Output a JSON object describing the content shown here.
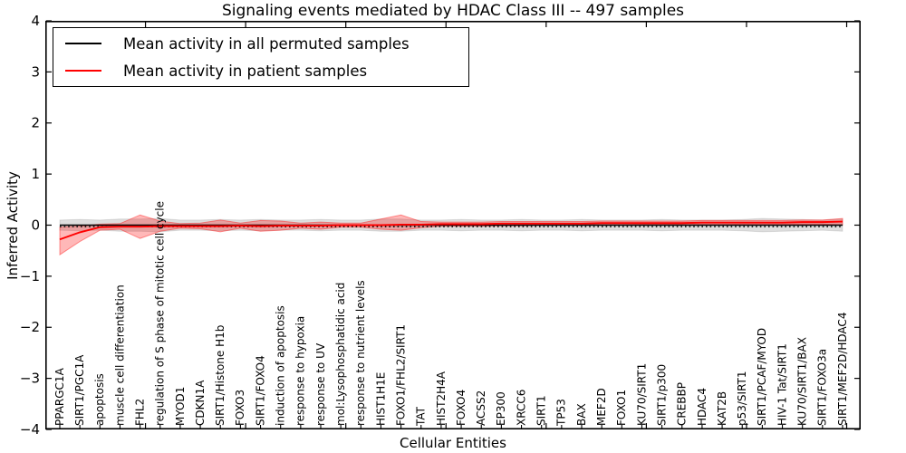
{
  "chart_data": {
    "type": "line",
    "title": "Signaling events mediated by HDAC Class III -- 497 samples",
    "xlabel": "Cellular Entities",
    "ylabel": "Inferred Activity",
    "ylim": [
      -4,
      4
    ],
    "xlim": [
      0,
      40.7
    ],
    "grid": false,
    "legend_position": "upper left",
    "y_tick_values": [
      4,
      3,
      2,
      1,
      0,
      -1,
      -2,
      -3,
      -4
    ],
    "y_tick_labels": [
      "4",
      "3",
      "2",
      "1",
      "0",
      "−1",
      "−2",
      "−3",
      "−4"
    ],
    "x_major_tick_values": [
      5,
      10,
      15,
      20,
      25,
      30,
      35,
      40
    ],
    "categories": [
      "PPARGC1A",
      "SIRT1/PGC1A",
      "apoptosis",
      "muscle cell differentiation",
      "FHL2",
      "regulation of S phase of mitotic cell cycle",
      "MYOD1",
      "CDKN1A",
      "SIRT1/Histone H1b",
      "FOXO3",
      "SIRT1/FOXO4",
      "induction of apoptosis",
      "response to hypoxia",
      "response to UV",
      "mol:Lysophosphatidic acid",
      "response to nutrient levels",
      "HIST1H1E",
      "FOXO1/FHL2/SIRT1",
      "TAT",
      "HIST2H4A",
      "FOXO4",
      "ACSS2",
      "EP300",
      "XRCC6",
      "SIRT1",
      "TP53",
      "BAX",
      "MEF2D",
      "FOXO1",
      "KU70/SIRT1",
      "SIRT1/p300",
      "CREBBP",
      "HDAC4",
      "KAT2B",
      "p53/SIRT1",
      "SIRT1/PCAF/MYOD",
      "HIV-1 Tat/SIRT1",
      "KU70/SIRT1/BAX",
      "SIRT1/FOXO3a",
      "SIRT1/MEF2D/HDAC4"
    ],
    "series": [
      {
        "name": "Mean activity in all permuted samples",
        "color": "#000000",
        "values": [
          0,
          0,
          0,
          0,
          0,
          0,
          0,
          0,
          0,
          0,
          0,
          0,
          0,
          0,
          0,
          0,
          0,
          0,
          0,
          0,
          0,
          0,
          0,
          0,
          0,
          0,
          0,
          0,
          0,
          0,
          0,
          0,
          0,
          0,
          0,
          0,
          0,
          0,
          0,
          0
        ]
      },
      {
        "name": "Mean activity in patient samples",
        "color": "#ff0000",
        "values": [
          -0.28,
          -0.14,
          -0.04,
          -0.03,
          -0.03,
          -0.02,
          -0.02,
          -0.02,
          -0.02,
          -0.01,
          -0.02,
          -0.01,
          -0.01,
          -0.01,
          0,
          0,
          0,
          0.01,
          0.01,
          0.02,
          0.02,
          0.02,
          0.03,
          0.03,
          0.03,
          0.03,
          0.03,
          0.04,
          0.04,
          0.04,
          0.04,
          0.04,
          0.05,
          0.05,
          0.05,
          0.05,
          0.05,
          0.06,
          0.06,
          0.07
        ]
      }
    ],
    "bands": [
      {
        "name": "permuted samples std band",
        "fill": "rgba(0,0,0,0.13)",
        "edge": "rgba(0,0,0,0.10)",
        "upper": [
          0.1,
          0.11,
          0.1,
          0.12,
          0.12,
          0.13,
          0.1,
          0.1,
          0.11,
          0.1,
          0.11,
          0.1,
          0.1,
          0.11,
          0.1,
          0.1,
          0.12,
          0.12,
          0.1,
          0.1,
          0.11,
          0.1,
          0.1,
          0.11,
          0.1,
          0.1,
          0.11,
          0.1,
          0.1,
          0.1,
          0.11,
          0.1,
          0.1,
          0.1,
          0.11,
          0.13,
          0.12,
          0.11,
          0.1,
          0.12
        ],
        "lower": [
          -0.1,
          -0.11,
          -0.1,
          -0.12,
          -0.12,
          -0.13,
          -0.1,
          -0.1,
          -0.11,
          -0.1,
          -0.11,
          -0.1,
          -0.1,
          -0.11,
          -0.1,
          -0.1,
          -0.12,
          -0.12,
          -0.1,
          -0.1,
          -0.11,
          -0.1,
          -0.1,
          -0.11,
          -0.1,
          -0.1,
          -0.11,
          -0.1,
          -0.1,
          -0.1,
          -0.11,
          -0.1,
          -0.1,
          -0.1,
          -0.11,
          -0.13,
          -0.12,
          -0.11,
          -0.1,
          -0.12
        ]
      },
      {
        "name": "patient samples std band",
        "fill": "rgba(255,0,0,0.28)",
        "edge": "rgba(255,0,0,0.40)",
        "upper": [
          -0.04,
          -0.02,
          0.02,
          0.03,
          0.2,
          0.08,
          0.03,
          0.04,
          0.1,
          0.04,
          0.09,
          0.08,
          0.04,
          0.06,
          0.04,
          0.04,
          0.12,
          0.2,
          0.07,
          0.06,
          0.06,
          0.06,
          0.07,
          0.07,
          0.07,
          0.07,
          0.07,
          0.08,
          0.08,
          0.08,
          0.08,
          0.08,
          0.09,
          0.09,
          0.09,
          0.09,
          0.09,
          0.1,
          0.1,
          0.13
        ],
        "lower": [
          -0.58,
          -0.32,
          -0.1,
          -0.08,
          -0.26,
          -0.12,
          -0.06,
          -0.07,
          -0.13,
          -0.06,
          -0.12,
          -0.1,
          -0.06,
          -0.08,
          -0.04,
          -0.04,
          -0.08,
          -0.1,
          -0.05,
          -0.02,
          -0.02,
          -0.02,
          -0.01,
          -0.01,
          0,
          0,
          0,
          0,
          0,
          0.01,
          0.01,
          0.01,
          0.01,
          0.01,
          0.02,
          0.02,
          0.02,
          0.02,
          0.02,
          0
        ]
      }
    ],
    "dotted_reference_value": -0.03
  }
}
